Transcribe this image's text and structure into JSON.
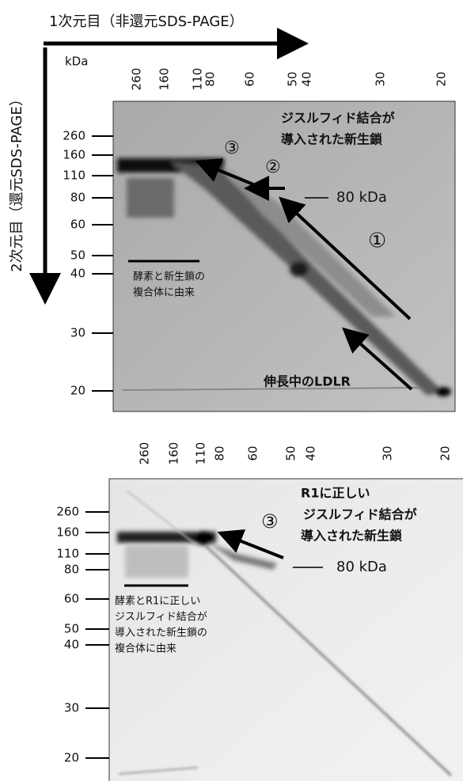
{
  "axes": {
    "x_title": "1次元目（非還元SDS-PAGE）",
    "y_title": "2次元目（還元SDS-PAGE）",
    "unit": "kDa"
  },
  "gels": [
    {
      "x_ticks": [
        260,
        160,
        110,
        80,
        60,
        50,
        40,
        30,
        20
      ],
      "y_ticks": [
        260,
        160,
        110,
        80,
        60,
        50,
        40,
        30,
        20
      ],
      "labels": [
        "ジスルフィド結合が",
        "導入された新生鎖",
        "③",
        "②",
        "①",
        "80 kDa",
        "酵素と新生鎖の",
        "複合体に由来",
        "伸長中のLDLR"
      ]
    },
    {
      "x_ticks": [
        260,
        160,
        110,
        80,
        60,
        50,
        40,
        30,
        20
      ],
      "y_ticks": [
        260,
        160,
        110,
        80,
        60,
        50,
        40,
        30,
        20
      ],
      "labels": [
        "R1に正しい",
        "ジスルフィド結合が",
        "導入された新生鎖",
        "③",
        "80 kDa",
        "酵素とR1に正しい",
        "ジスルフィド結合が",
        "導入された新生鎖の",
        "複合体に由来"
      ]
    }
  ]
}
